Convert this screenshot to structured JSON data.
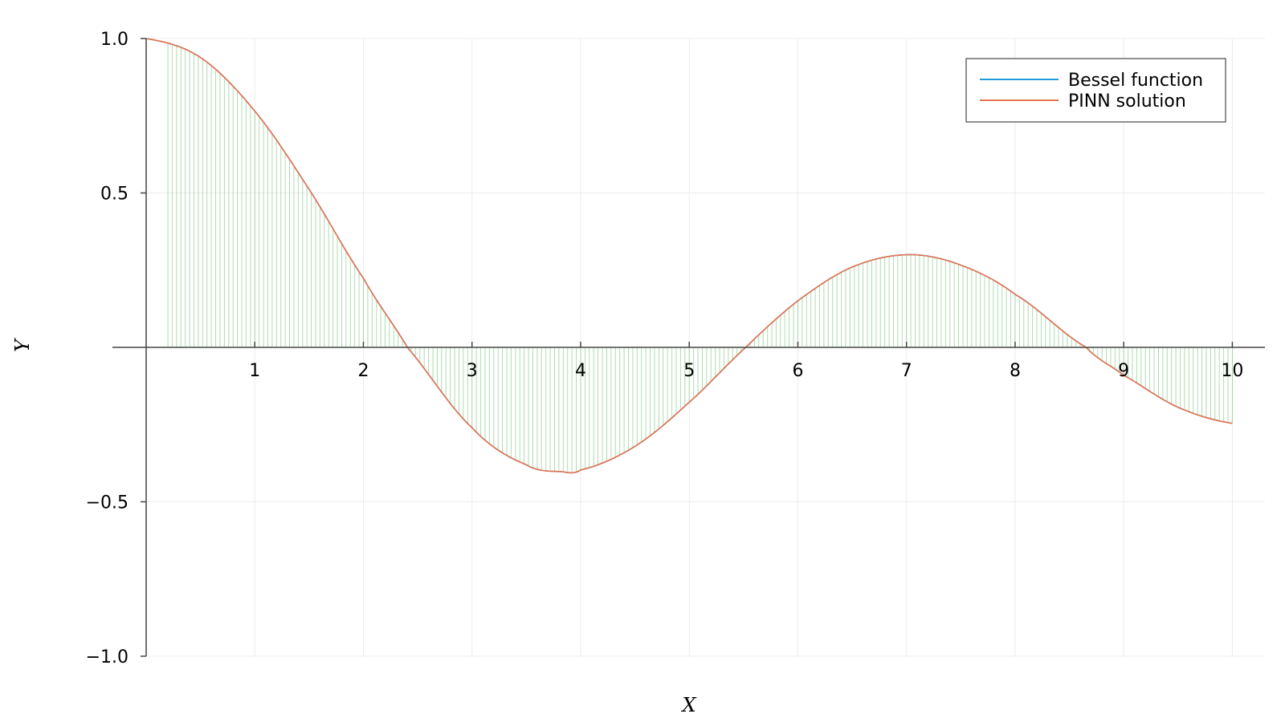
{
  "chart_data": {
    "type": "line",
    "xlabel": "X",
    "ylabel": "Y",
    "xlim": [
      0,
      10.3
    ],
    "ylim": [
      -1.0,
      1.0
    ],
    "xticks": [
      1,
      2,
      3,
      4,
      5,
      6,
      7,
      8,
      9,
      10
    ],
    "yticks": [
      1.0,
      0.5,
      -0.5,
      -1.0
    ],
    "ytick_labels": [
      "1.0",
      "0.5",
      "−0.5",
      "−1.0"
    ],
    "grid": true,
    "legend_position": "top-right",
    "x": [
      0,
      0.5,
      1,
      1.5,
      2,
      2.405,
      3,
      3.5,
      3.832,
      4,
      4.5,
      5,
      5.52,
      6,
      6.5,
      7.016,
      7.5,
      8,
      8.654,
      9,
      9.5,
      10
    ],
    "series": [
      {
        "name": "Bessel function",
        "color": "#1f9bd8",
        "values": [
          1.0,
          0.9385,
          0.7652,
          0.5118,
          0.2239,
          0.0,
          -0.2601,
          -0.3801,
          -0.4028,
          -0.3971,
          -0.3205,
          -0.1776,
          0.0,
          0.1506,
          0.2601,
          0.3001,
          0.2663,
          0.1717,
          0.0,
          -0.0903,
          -0.1939,
          -0.2459
        ]
      },
      {
        "name": "PINN solution",
        "color": "#e8734f",
        "values": [
          1.0,
          0.9385,
          0.7652,
          0.5118,
          0.2239,
          0.0,
          -0.2601,
          -0.3801,
          -0.4028,
          -0.3971,
          -0.3205,
          -0.1776,
          0.0,
          0.1506,
          0.2601,
          0.3001,
          0.2663,
          0.1717,
          0.0,
          -0.0903,
          -0.1939,
          -0.2459
        ]
      }
    ],
    "sample_sticks_color": "#6cbf6c"
  }
}
